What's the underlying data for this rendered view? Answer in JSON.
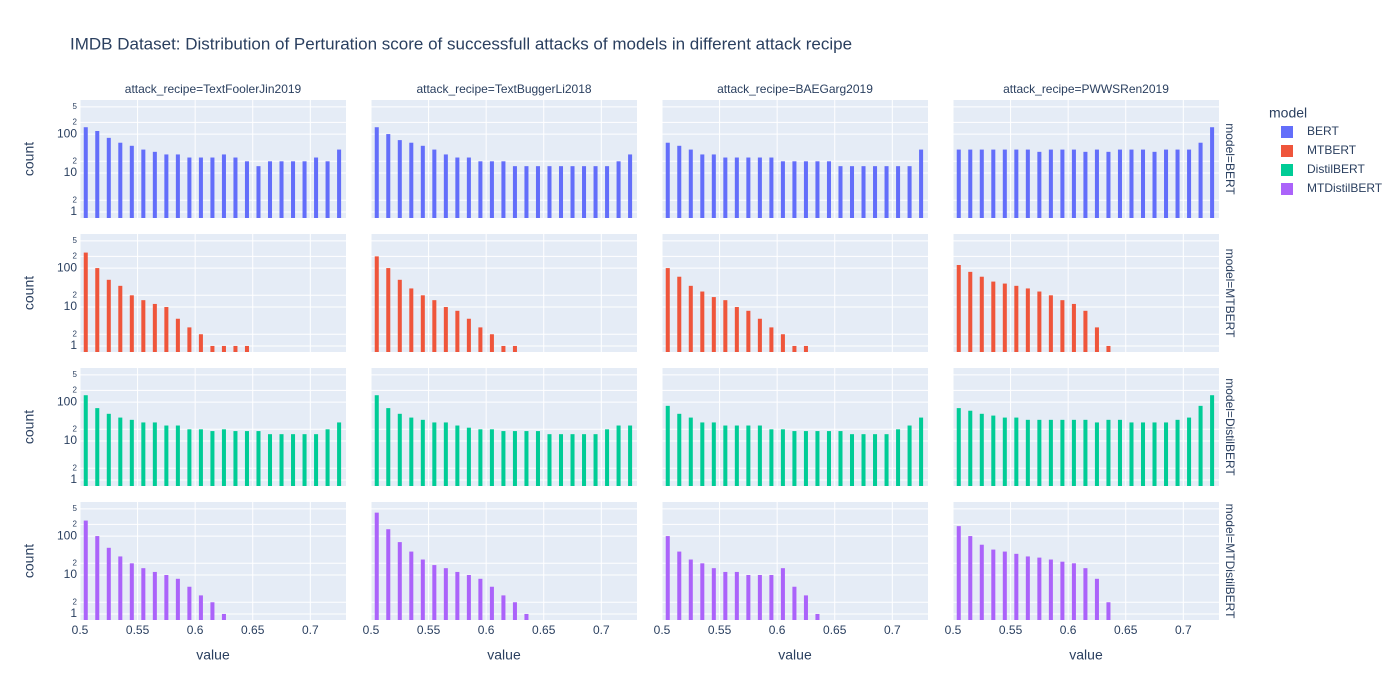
{
  "figure": {
    "title": "IMDB Dataset: Distribution of Perturation score of successfull attacks of models in different attack recipe",
    "x_label": "value",
    "y_label": "count",
    "legend_title": "model",
    "column_labels": [
      "attack_recipe=TextFoolerJin2019",
      "attack_recipe=TextBuggerLi2018",
      "attack_recipe=BAEGarg2019",
      "attack_recipe=PWWSRen2019"
    ],
    "row_labels": [
      "model=BERT",
      "model=MTBERT",
      "model=DistilBERT",
      "model=MTDistilBERT"
    ],
    "legend": [
      {
        "name": "BERT",
        "color": "#636efa"
      },
      {
        "name": "MTBERT",
        "color": "#EF553B"
      },
      {
        "name": "DistilBERT",
        "color": "#00cc96"
      },
      {
        "name": "MTDistilBERT",
        "color": "#ab63fa"
      }
    ],
    "xlim": [
      0.5,
      0.731
    ],
    "xticks": [
      0.5,
      0.55,
      0.6,
      0.65,
      0.7
    ],
    "ylim": [
      0.7,
      750
    ],
    "log_y": true,
    "grid": true,
    "yticks": [
      1,
      {
        "value": 2,
        "label": "2"
      },
      10,
      {
        "value": 20,
        "label": "2"
      },
      100,
      {
        "value": 200,
        "label": "2"
      },
      {
        "value": 500,
        "label": "5"
      }
    ]
  },
  "chart_data": [
    {
      "type": "histogram",
      "color": "#636efa",
      "bins": [
        0.5,
        0.51,
        0.52,
        0.53,
        0.54,
        0.55,
        0.56,
        0.57,
        0.58,
        0.59,
        0.6,
        0.61,
        0.62,
        0.63,
        0.64,
        0.65,
        0.66,
        0.67,
        0.68,
        0.69,
        0.7,
        0.71,
        0.72,
        0.73
      ],
      "counts": [
        150,
        120,
        80,
        60,
        50,
        40,
        35,
        30,
        30,
        25,
        25,
        25,
        30,
        25,
        20,
        15,
        20,
        20,
        20,
        20,
        25,
        20,
        40
      ]
    },
    {
      "type": "histogram",
      "color": "#636efa",
      "bins": [
        0.5,
        0.51,
        0.52,
        0.53,
        0.54,
        0.55,
        0.56,
        0.57,
        0.58,
        0.59,
        0.6,
        0.61,
        0.62,
        0.63,
        0.64,
        0.65,
        0.66,
        0.67,
        0.68,
        0.69,
        0.7,
        0.71,
        0.72,
        0.73
      ],
      "counts": [
        150,
        100,
        70,
        60,
        50,
        40,
        30,
        25,
        25,
        20,
        20,
        20,
        15,
        15,
        15,
        15,
        15,
        15,
        15,
        15,
        15,
        20,
        30
      ]
    },
    {
      "type": "histogram",
      "color": "#636efa",
      "bins": [
        0.5,
        0.51,
        0.52,
        0.53,
        0.54,
        0.55,
        0.56,
        0.57,
        0.58,
        0.59,
        0.6,
        0.61,
        0.62,
        0.63,
        0.64,
        0.65,
        0.66,
        0.67,
        0.68,
        0.69,
        0.7,
        0.71,
        0.72,
        0.73
      ],
      "counts": [
        60,
        50,
        40,
        30,
        30,
        25,
        25,
        25,
        25,
        25,
        20,
        20,
        20,
        20,
        20,
        15,
        15,
        15,
        15,
        15,
        15,
        15,
        40
      ]
    },
    {
      "type": "histogram",
      "color": "#636efa",
      "bins": [
        0.5,
        0.51,
        0.52,
        0.53,
        0.54,
        0.55,
        0.56,
        0.57,
        0.58,
        0.59,
        0.6,
        0.61,
        0.62,
        0.63,
        0.64,
        0.65,
        0.66,
        0.67,
        0.68,
        0.69,
        0.7,
        0.71,
        0.72,
        0.73
      ],
      "counts": [
        40,
        40,
        40,
        40,
        40,
        40,
        40,
        35,
        40,
        40,
        40,
        35,
        40,
        35,
        40,
        40,
        40,
        35,
        40,
        40,
        40,
        60,
        150
      ]
    },
    {
      "type": "histogram",
      "color": "#EF553B",
      "bins": [
        0.5,
        0.51,
        0.52,
        0.53,
        0.54,
        0.55,
        0.56,
        0.57,
        0.58,
        0.59,
        0.6,
        0.61,
        0.62,
        0.63,
        0.64,
        0.65,
        0.66,
        0.67,
        0.68,
        0.69,
        0.7,
        0.71,
        0.72,
        0.73
      ],
      "counts": [
        250,
        100,
        50,
        35,
        20,
        15,
        12,
        10,
        5,
        3,
        2,
        1,
        1,
        1,
        1,
        0,
        0,
        0,
        0,
        0,
        0,
        0,
        0
      ]
    },
    {
      "type": "histogram",
      "color": "#EF553B",
      "bins": [
        0.5,
        0.51,
        0.52,
        0.53,
        0.54,
        0.55,
        0.56,
        0.57,
        0.58,
        0.59,
        0.6,
        0.61,
        0.62,
        0.63,
        0.64,
        0.65,
        0.66,
        0.67,
        0.68,
        0.69,
        0.7,
        0.71,
        0.72,
        0.73
      ],
      "counts": [
        200,
        100,
        50,
        30,
        20,
        15,
        10,
        8,
        5,
        3,
        2,
        1,
        1,
        0,
        0,
        0,
        0,
        0,
        0,
        0,
        0,
        0,
        0
      ]
    },
    {
      "type": "histogram",
      "color": "#EF553B",
      "bins": [
        0.5,
        0.51,
        0.52,
        0.53,
        0.54,
        0.55,
        0.56,
        0.57,
        0.58,
        0.59,
        0.6,
        0.61,
        0.62,
        0.63,
        0.64,
        0.65,
        0.66,
        0.67,
        0.68,
        0.69,
        0.7,
        0.71,
        0.72,
        0.73
      ],
      "counts": [
        100,
        60,
        35,
        25,
        18,
        15,
        10,
        8,
        5,
        3,
        2,
        1,
        1,
        0,
        0,
        0,
        0,
        0,
        0,
        0,
        0,
        0,
        0
      ]
    },
    {
      "type": "histogram",
      "color": "#EF553B",
      "bins": [
        0.5,
        0.51,
        0.52,
        0.53,
        0.54,
        0.55,
        0.56,
        0.57,
        0.58,
        0.59,
        0.6,
        0.61,
        0.62,
        0.63,
        0.64,
        0.65,
        0.66,
        0.67,
        0.68,
        0.69,
        0.7,
        0.71,
        0.72,
        0.73
      ],
      "counts": [
        120,
        80,
        60,
        45,
        40,
        35,
        30,
        25,
        20,
        15,
        12,
        8,
        3,
        1,
        0,
        0,
        0,
        0,
        0,
        0,
        0,
        0,
        0
      ]
    },
    {
      "type": "histogram",
      "color": "#00cc96",
      "bins": [
        0.5,
        0.51,
        0.52,
        0.53,
        0.54,
        0.55,
        0.56,
        0.57,
        0.58,
        0.59,
        0.6,
        0.61,
        0.62,
        0.63,
        0.64,
        0.65,
        0.66,
        0.67,
        0.68,
        0.69,
        0.7,
        0.71,
        0.72,
        0.73
      ],
      "counts": [
        150,
        70,
        50,
        40,
        35,
        30,
        30,
        25,
        25,
        20,
        20,
        18,
        20,
        18,
        18,
        18,
        15,
        15,
        15,
        15,
        15,
        20,
        30
      ]
    },
    {
      "type": "histogram",
      "color": "#00cc96",
      "bins": [
        0.5,
        0.51,
        0.52,
        0.53,
        0.54,
        0.55,
        0.56,
        0.57,
        0.58,
        0.59,
        0.6,
        0.61,
        0.62,
        0.63,
        0.64,
        0.65,
        0.66,
        0.67,
        0.68,
        0.69,
        0.7,
        0.71,
        0.72,
        0.73
      ],
      "counts": [
        150,
        70,
        50,
        40,
        35,
        30,
        30,
        25,
        22,
        20,
        20,
        18,
        18,
        18,
        18,
        15,
        15,
        15,
        15,
        15,
        20,
        25,
        25
      ]
    },
    {
      "type": "histogram",
      "color": "#00cc96",
      "bins": [
        0.5,
        0.51,
        0.52,
        0.53,
        0.54,
        0.55,
        0.56,
        0.57,
        0.58,
        0.59,
        0.6,
        0.61,
        0.62,
        0.63,
        0.64,
        0.65,
        0.66,
        0.67,
        0.68,
        0.69,
        0.7,
        0.71,
        0.72,
        0.73
      ],
      "counts": [
        80,
        50,
        40,
        30,
        30,
        25,
        25,
        25,
        25,
        20,
        20,
        18,
        18,
        18,
        18,
        18,
        15,
        15,
        15,
        15,
        20,
        25,
        40
      ]
    },
    {
      "type": "histogram",
      "color": "#00cc96",
      "bins": [
        0.5,
        0.51,
        0.52,
        0.53,
        0.54,
        0.55,
        0.56,
        0.57,
        0.58,
        0.59,
        0.6,
        0.61,
        0.62,
        0.63,
        0.64,
        0.65,
        0.66,
        0.67,
        0.68,
        0.69,
        0.7,
        0.71,
        0.72,
        0.73
      ],
      "counts": [
        70,
        60,
        50,
        45,
        40,
        40,
        35,
        35,
        35,
        35,
        35,
        35,
        30,
        35,
        35,
        30,
        30,
        30,
        30,
        35,
        40,
        80,
        150
      ]
    },
    {
      "type": "histogram",
      "color": "#ab63fa",
      "bins": [
        0.5,
        0.51,
        0.52,
        0.53,
        0.54,
        0.55,
        0.56,
        0.57,
        0.58,
        0.59,
        0.6,
        0.61,
        0.62,
        0.63,
        0.64,
        0.65,
        0.66,
        0.67,
        0.68,
        0.69,
        0.7,
        0.71,
        0.72,
        0.73
      ],
      "counts": [
        250,
        100,
        50,
        30,
        20,
        15,
        12,
        10,
        8,
        5,
        3,
        2,
        1,
        0,
        0,
        0,
        0,
        0,
        0,
        0,
        0,
        0,
        0
      ]
    },
    {
      "type": "histogram",
      "color": "#ab63fa",
      "bins": [
        0.5,
        0.51,
        0.52,
        0.53,
        0.54,
        0.55,
        0.56,
        0.57,
        0.58,
        0.59,
        0.6,
        0.61,
        0.62,
        0.63,
        0.64,
        0.65,
        0.66,
        0.67,
        0.68,
        0.69,
        0.7,
        0.71,
        0.72,
        0.73
      ],
      "counts": [
        400,
        150,
        70,
        40,
        25,
        18,
        15,
        12,
        10,
        8,
        5,
        3,
        2,
        1,
        0,
        0,
        0,
        0,
        0,
        0,
        0,
        0,
        0
      ]
    },
    {
      "type": "histogram",
      "color": "#ab63fa",
      "bins": [
        0.5,
        0.51,
        0.52,
        0.53,
        0.54,
        0.55,
        0.56,
        0.57,
        0.58,
        0.59,
        0.6,
        0.61,
        0.62,
        0.63,
        0.64,
        0.65,
        0.66,
        0.67,
        0.68,
        0.69,
        0.7,
        0.71,
        0.72,
        0.73
      ],
      "counts": [
        100,
        40,
        25,
        20,
        15,
        12,
        12,
        10,
        10,
        10,
        15,
        5,
        3,
        1,
        0,
        0,
        0,
        0,
        0,
        0,
        0,
        0,
        0
      ]
    },
    {
      "type": "histogram",
      "color": "#ab63fa",
      "bins": [
        0.5,
        0.51,
        0.52,
        0.53,
        0.54,
        0.55,
        0.56,
        0.57,
        0.58,
        0.59,
        0.6,
        0.61,
        0.62,
        0.63,
        0.64,
        0.65,
        0.66,
        0.67,
        0.68,
        0.69,
        0.7,
        0.71,
        0.72,
        0.73
      ],
      "counts": [
        180,
        100,
        60,
        45,
        40,
        35,
        30,
        28,
        25,
        22,
        20,
        15,
        8,
        2,
        0,
        0,
        0,
        0,
        0,
        0,
        0,
        0,
        0
      ]
    }
  ]
}
